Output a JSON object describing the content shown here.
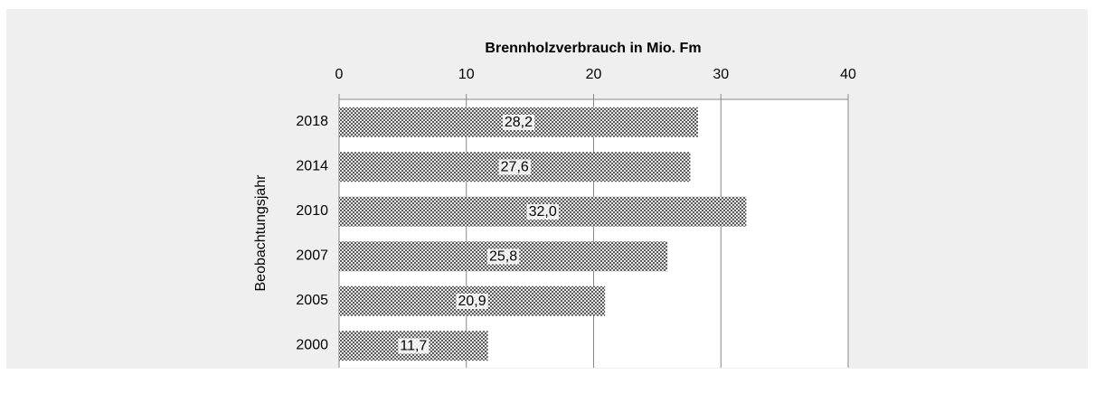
{
  "chart_data": {
    "type": "bar",
    "orientation": "horizontal",
    "title": "Brennholzverbrauch in Mio. Fm",
    "y_label": "Beobachtungsjahr",
    "categories": [
      "2018",
      "2014",
      "2010",
      "2007",
      "2005",
      "2000"
    ],
    "values": [
      28.2,
      27.6,
      32.0,
      25.8,
      20.9,
      11.7
    ],
    "value_labels": [
      "28,2",
      "27,6",
      "32,0",
      "25,8",
      "20,9",
      "11,7"
    ],
    "color": "#5a5a5a",
    "xlim": [
      0,
      40
    ],
    "xticks": [
      0,
      10,
      20,
      30,
      40
    ],
    "grid": true
  }
}
